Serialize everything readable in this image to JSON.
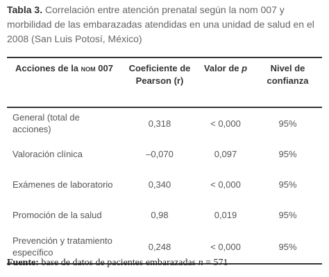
{
  "caption": {
    "label": "Tabla 3.",
    "text": "Correlación entre atención prenatal según la nom 007 y morbilidad de las embarazadas atendidas en una unidad de salud en el 2008 (San Luis Potosí, México)"
  },
  "table": {
    "header": {
      "col0": {
        "before": "Acciones de la",
        "abbr": "nom",
        "after": "007"
      },
      "col1": "Coeficiente de Pearson (r)",
      "col2": {
        "before": "Valor de",
        "italic": "p"
      },
      "col3": "Nivel de confianza"
    },
    "rows": [
      [
        "General (total de acciones)",
        "0,318",
        "< 0,000",
        "95%"
      ],
      [
        "Valoración clínica",
        "–0,070",
        "0,097",
        "95%"
      ],
      [
        "Exámenes de labora­torio",
        "0,340",
        "< 0,000",
        "95%"
      ],
      [
        "Promoción de la salud",
        "0,98",
        "0,019",
        "95%"
      ],
      [
        "Prevención y tratamien­to específico",
        "0,248",
        "< 0,000",
        "95%"
      ]
    ]
  },
  "footer": {
    "label": "Fuente:",
    "text": "base de datos de pacientes embarazadas",
    "n": "n",
    "n_value": "= 571"
  }
}
